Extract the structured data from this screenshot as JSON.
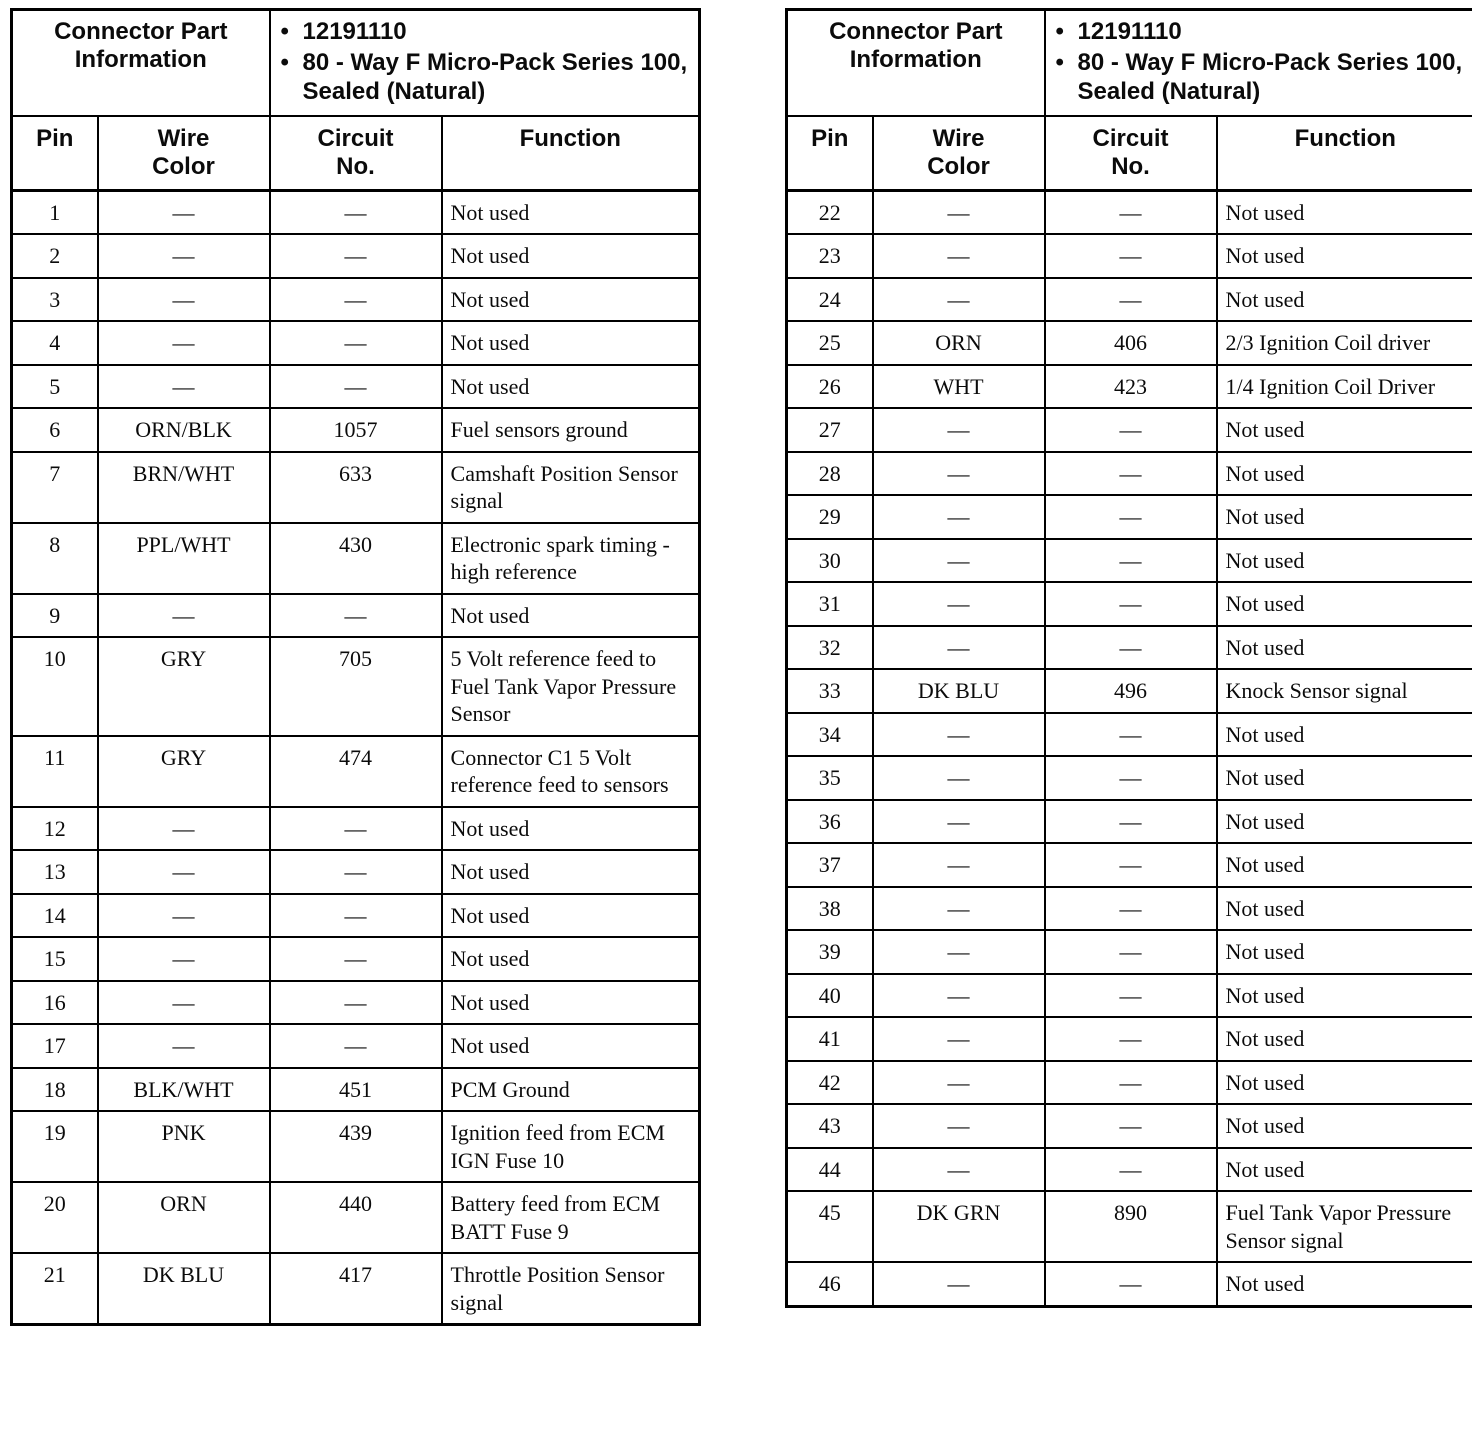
{
  "tables": [
    {
      "name": "pins-1-21",
      "part_info_label": "Connector Part Information",
      "part_info_details": [
        "12191110",
        "80 - Way F Micro-Pack Series 100, Sealed (Natural)"
      ],
      "columns": [
        "Pin",
        "Wire\nColor",
        "Circuit\nNo.",
        "Function"
      ],
      "rows": [
        {
          "pin": "1",
          "wire_color": "—",
          "circuit_no": "—",
          "function": "Not used"
        },
        {
          "pin": "2",
          "wire_color": "—",
          "circuit_no": "—",
          "function": "Not used"
        },
        {
          "pin": "3",
          "wire_color": "—",
          "circuit_no": "—",
          "function": "Not used"
        },
        {
          "pin": "4",
          "wire_color": "—",
          "circuit_no": "—",
          "function": "Not used"
        },
        {
          "pin": "5",
          "wire_color": "—",
          "circuit_no": "—",
          "function": "Not used"
        },
        {
          "pin": "6",
          "wire_color": "ORN/BLK",
          "circuit_no": "1057",
          "function": "Fuel sensors ground"
        },
        {
          "pin": "7",
          "wire_color": "BRN/WHT",
          "circuit_no": "633",
          "function": "Camshaft Position Sensor signal"
        },
        {
          "pin": "8",
          "wire_color": "PPL/WHT",
          "circuit_no": "430",
          "function": "Electronic spark timing - high reference"
        },
        {
          "pin": "9",
          "wire_color": "—",
          "circuit_no": "—",
          "function": "Not used"
        },
        {
          "pin": "10",
          "wire_color": "GRY",
          "circuit_no": "705",
          "function": "5 Volt reference feed to Fuel Tank Vapor Pressure Sensor"
        },
        {
          "pin": "11",
          "wire_color": "GRY",
          "circuit_no": "474",
          "function": "Connector C1 5 Volt reference feed to sensors"
        },
        {
          "pin": "12",
          "wire_color": "—",
          "circuit_no": "—",
          "function": "Not used"
        },
        {
          "pin": "13",
          "wire_color": "—",
          "circuit_no": "—",
          "function": "Not used"
        },
        {
          "pin": "14",
          "wire_color": "—",
          "circuit_no": "—",
          "function": "Not used"
        },
        {
          "pin": "15",
          "wire_color": "—",
          "circuit_no": "—",
          "function": "Not used"
        },
        {
          "pin": "16",
          "wire_color": "—",
          "circuit_no": "—",
          "function": "Not used"
        },
        {
          "pin": "17",
          "wire_color": "—",
          "circuit_no": "—",
          "function": "Not used"
        },
        {
          "pin": "18",
          "wire_color": "BLK/WHT",
          "circuit_no": "451",
          "function": "PCM Ground"
        },
        {
          "pin": "19",
          "wire_color": "PNK",
          "circuit_no": "439",
          "function": "Ignition feed from ECM IGN Fuse 10"
        },
        {
          "pin": "20",
          "wire_color": "ORN",
          "circuit_no": "440",
          "function": "Battery feed from ECM BATT Fuse 9"
        },
        {
          "pin": "21",
          "wire_color": "DK BLU",
          "circuit_no": "417",
          "function": "Throttle Position Sensor signal"
        }
      ]
    },
    {
      "name": "pins-22-46",
      "part_info_label": "Connector Part Information",
      "part_info_details": [
        "12191110",
        "80 - Way F Micro-Pack Series 100, Sealed (Natural)"
      ],
      "columns": [
        "Pin",
        "Wire\nColor",
        "Circuit\nNo.",
        "Function"
      ],
      "rows": [
        {
          "pin": "22",
          "wire_color": "—",
          "circuit_no": "—",
          "function": "Not used"
        },
        {
          "pin": "23",
          "wire_color": "—",
          "circuit_no": "—",
          "function": "Not used"
        },
        {
          "pin": "24",
          "wire_color": "—",
          "circuit_no": "—",
          "function": "Not used"
        },
        {
          "pin": "25",
          "wire_color": "ORN",
          "circuit_no": "406",
          "function": "2/3 Ignition Coil driver"
        },
        {
          "pin": "26",
          "wire_color": "WHT",
          "circuit_no": "423",
          "function": "1/4 Ignition Coil Driver"
        },
        {
          "pin": "27",
          "wire_color": "—",
          "circuit_no": "—",
          "function": "Not used"
        },
        {
          "pin": "28",
          "wire_color": "—",
          "circuit_no": "—",
          "function": "Not used"
        },
        {
          "pin": "29",
          "wire_color": "—",
          "circuit_no": "—",
          "function": "Not used"
        },
        {
          "pin": "30",
          "wire_color": "—",
          "circuit_no": "—",
          "function": "Not used"
        },
        {
          "pin": "31",
          "wire_color": "—",
          "circuit_no": "—",
          "function": "Not used"
        },
        {
          "pin": "32",
          "wire_color": "—",
          "circuit_no": "—",
          "function": "Not used"
        },
        {
          "pin": "33",
          "wire_color": "DK BLU",
          "circuit_no": "496",
          "function": "Knock Sensor signal"
        },
        {
          "pin": "34",
          "wire_color": "—",
          "circuit_no": "—",
          "function": "Not used"
        },
        {
          "pin": "35",
          "wire_color": "—",
          "circuit_no": "—",
          "function": "Not used"
        },
        {
          "pin": "36",
          "wire_color": "—",
          "circuit_no": "—",
          "function": "Not used"
        },
        {
          "pin": "37",
          "wire_color": "—",
          "circuit_no": "—",
          "function": "Not used"
        },
        {
          "pin": "38",
          "wire_color": "—",
          "circuit_no": "—",
          "function": "Not used"
        },
        {
          "pin": "39",
          "wire_color": "—",
          "circuit_no": "—",
          "function": "Not used"
        },
        {
          "pin": "40",
          "wire_color": "—",
          "circuit_no": "—",
          "function": "Not used"
        },
        {
          "pin": "41",
          "wire_color": "—",
          "circuit_no": "—",
          "function": "Not used"
        },
        {
          "pin": "42",
          "wire_color": "—",
          "circuit_no": "—",
          "function": "Not used"
        },
        {
          "pin": "43",
          "wire_color": "—",
          "circuit_no": "—",
          "function": "Not used"
        },
        {
          "pin": "44",
          "wire_color": "—",
          "circuit_no": "—",
          "function": "Not used"
        },
        {
          "pin": "45",
          "wire_color": "DK GRN",
          "circuit_no": "890",
          "function": "Fuel Tank Vapor Pressure Sensor signal"
        },
        {
          "pin": "46",
          "wire_color": "—",
          "circuit_no": "—",
          "function": "Not used"
        }
      ]
    }
  ]
}
